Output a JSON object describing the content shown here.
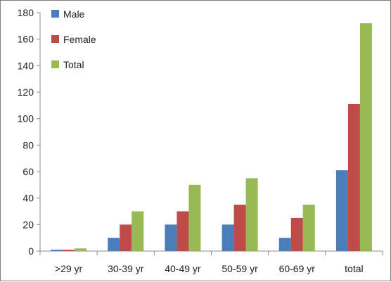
{
  "chart_data": {
    "type": "bar",
    "title": "",
    "xlabel": "",
    "ylabel": "",
    "categories": [
      ">29 yr",
      "30-39 yr",
      "40-49 yr",
      "50-59 yr",
      "60-69 yr",
      "total"
    ],
    "series": [
      {
        "name": "Male",
        "color": "#4a7ebb",
        "values": [
          1,
          10,
          20,
          20,
          10,
          61
        ]
      },
      {
        "name": "Female",
        "color": "#be4b48",
        "values": [
          1,
          20,
          30,
          35,
          25,
          111
        ]
      },
      {
        "name": "Total",
        "color": "#98b954",
        "values": [
          2,
          30,
          50,
          55,
          35,
          172
        ]
      }
    ],
    "ylim": [
      0,
      180
    ],
    "yticks": [
      0,
      20,
      40,
      60,
      80,
      100,
      120,
      140,
      160,
      180
    ],
    "grid": false,
    "legend_position": "top-left"
  }
}
